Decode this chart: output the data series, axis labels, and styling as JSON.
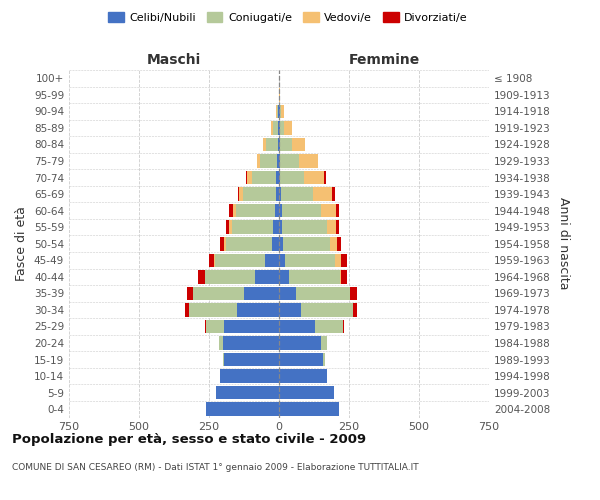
{
  "age_groups": [
    "0-4",
    "5-9",
    "10-14",
    "15-19",
    "20-24",
    "25-29",
    "30-34",
    "35-39",
    "40-44",
    "45-49",
    "50-54",
    "55-59",
    "60-64",
    "65-69",
    "70-74",
    "75-79",
    "80-84",
    "85-89",
    "90-94",
    "95-99",
    "100+"
  ],
  "birth_years": [
    "2004-2008",
    "1999-2003",
    "1994-1998",
    "1989-1993",
    "1984-1988",
    "1979-1983",
    "1974-1978",
    "1969-1973",
    "1964-1968",
    "1959-1963",
    "1954-1958",
    "1949-1953",
    "1944-1948",
    "1939-1943",
    "1934-1938",
    "1929-1933",
    "1924-1928",
    "1919-1923",
    "1914-1918",
    "1909-1913",
    "≤ 1908"
  ],
  "maschi": {
    "celibi": [
      260,
      225,
      210,
      195,
      200,
      195,
      150,
      125,
      85,
      50,
      25,
      20,
      15,
      12,
      10,
      8,
      5,
      3,
      2,
      0,
      0
    ],
    "coniugati": [
      0,
      0,
      0,
      5,
      15,
      65,
      172,
      182,
      178,
      178,
      165,
      148,
      140,
      115,
      85,
      60,
      40,
      18,
      5,
      0,
      0
    ],
    "vedovi": [
      0,
      0,
      0,
      0,
      0,
      0,
      0,
      0,
      3,
      5,
      8,
      10,
      10,
      15,
      18,
      12,
      12,
      8,
      3,
      0,
      0
    ],
    "divorziati": [
      0,
      0,
      0,
      0,
      0,
      5,
      15,
      22,
      22,
      18,
      14,
      12,
      12,
      6,
      4,
      0,
      0,
      0,
      0,
      0,
      0
    ]
  },
  "femmine": {
    "nubili": [
      215,
      195,
      170,
      158,
      150,
      130,
      80,
      60,
      35,
      22,
      15,
      12,
      10,
      8,
      5,
      5,
      4,
      3,
      2,
      0,
      0
    ],
    "coniugate": [
      0,
      0,
      0,
      5,
      22,
      98,
      185,
      195,
      182,
      178,
      168,
      158,
      140,
      115,
      85,
      65,
      42,
      15,
      5,
      0,
      0
    ],
    "vedove": [
      0,
      0,
      0,
      0,
      0,
      0,
      0,
      0,
      5,
      22,
      25,
      32,
      52,
      68,
      72,
      68,
      48,
      28,
      10,
      2,
      0
    ],
    "divorziate": [
      0,
      0,
      0,
      0,
      0,
      5,
      15,
      22,
      22,
      20,
      15,
      13,
      13,
      8,
      5,
      0,
      0,
      0,
      0,
      0,
      0
    ]
  },
  "colors": {
    "celibi": "#4472c4",
    "coniugati": "#b5c99a",
    "vedovi": "#f5c072",
    "divorziati": "#cc0000"
  },
  "xlim": 750,
  "xticks": [
    750,
    500,
    250,
    0,
    250,
    500,
    750
  ],
  "title": "Popolazione per età, sesso e stato civile - 2009",
  "subtitle": "COMUNE DI SAN CESAREO (RM) - Dati ISTAT 1° gennaio 2009 - Elaborazione TUTTITALIA.IT",
  "ylabel_left": "Fasce di età",
  "ylabel_right": "Anni di nascita",
  "header_maschi": "Maschi",
  "header_femmine": "Femmine",
  "legend_labels": [
    "Celibi/Nubili",
    "Coniugati/e",
    "Vedovi/e",
    "Divorziati/e"
  ],
  "bg_color": "#ffffff",
  "grid_color": "#cccccc"
}
